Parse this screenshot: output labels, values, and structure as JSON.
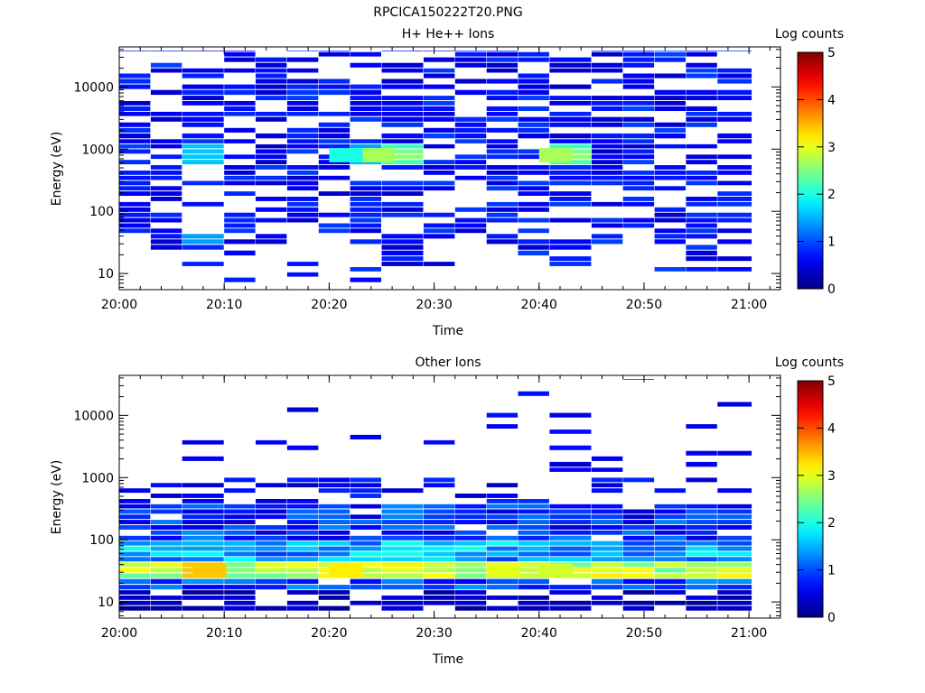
{
  "figure": {
    "filename": "RPCICA150222T20.PNG"
  },
  "colorbar": {
    "label": "Log counts",
    "ticks": [
      "0",
      "1",
      "2",
      "3",
      "4",
      "5"
    ],
    "range": [
      0,
      5
    ],
    "colormap": "jet"
  },
  "chart_data": [
    {
      "type": "heatmap",
      "title": "H+ He++ Ions",
      "xlabel": "Time",
      "ylabel": "Energy (eV)",
      "x_range": [
        "20:00",
        "21:03"
      ],
      "x_ticks": [
        "20:00",
        "20:10",
        "20:20",
        "20:30",
        "20:40",
        "20:50",
        "21:00"
      ],
      "y_scale": "log",
      "y_range": [
        5.5,
        44000
      ],
      "y_ticks": [
        "10",
        "100",
        "1000",
        "10000"
      ],
      "colorbar_label": "Log counts",
      "time_bins": [
        "20:00",
        "20:03",
        "20:06",
        "20:10",
        "20:13",
        "20:16",
        "20:19",
        "20:22",
        "20:25",
        "20:29",
        "20:32",
        "20:35",
        "20:38",
        "20:41",
        "20:45",
        "20:48",
        "20:51",
        "20:54",
        "20:57"
      ],
      "energy_bins_ev": [
        40000,
        33000,
        27000,
        22000,
        18000,
        15000,
        12000,
        10000,
        8000,
        6500,
        5400,
        4400,
        3600,
        3000,
        2400,
        2000,
        1600,
        1300,
        1100,
        900,
        740,
        610,
        500,
        410,
        340,
        280,
        230,
        190,
        155,
        128,
        105,
        86,
        71,
        58,
        48,
        39,
        32,
        26,
        21,
        17,
        14,
        11.5,
        9.5,
        7.8
      ],
      "notable_features": [
        {
          "time": "20:23",
          "energy_ev": 800,
          "log_counts": 2.7
        },
        {
          "time": "20:40",
          "energy_ev": 800,
          "log_counts": 2.7
        },
        {
          "time": "20:20",
          "energy_ev": 800,
          "log_counts": 2.0
        }
      ]
    },
    {
      "type": "heatmap",
      "title": "Other Ions",
      "xlabel": "Time",
      "ylabel": "Energy (eV)",
      "x_range": [
        "20:00",
        "21:03"
      ],
      "x_ticks": [
        "20:00",
        "20:10",
        "20:20",
        "20:30",
        "20:40",
        "20:50",
        "21:00"
      ],
      "y_scale": "log",
      "y_range": [
        5.5,
        44000
      ],
      "y_ticks": [
        "10",
        "100",
        "1000",
        "10000"
      ],
      "colorbar_label": "Log counts",
      "time_bins": [
        "20:00",
        "20:03",
        "20:06",
        "20:10",
        "20:13",
        "20:16",
        "20:19",
        "20:22",
        "20:25",
        "20:29",
        "20:32",
        "20:35",
        "20:38",
        "20:41",
        "20:45",
        "20:48",
        "20:51",
        "20:54",
        "20:57"
      ],
      "energy_bins_ev": [
        40000,
        33000,
        27000,
        22000,
        18000,
        15000,
        12000,
        10000,
        8000,
        6500,
        5400,
        4400,
        3600,
        3000,
        2400,
        2000,
        1600,
        1300,
        1100,
        900,
        740,
        610,
        500,
        410,
        340,
        280,
        230,
        190,
        155,
        128,
        105,
        86,
        71,
        58,
        48,
        39,
        32,
        26,
        21,
        17,
        14,
        11.5,
        9.5,
        7.8
      ],
      "notable_features": [
        {
          "time": "20:07",
          "energy_ev": 32,
          "log_counts": 3.4
        },
        {
          "time": "20:20",
          "energy_ev": 32,
          "log_counts": 3.2
        },
        {
          "time": "20:35",
          "energy_ev": 32,
          "log_counts": 3.0
        },
        {
          "time": "20:40",
          "energy_ev": 32,
          "log_counts": 2.9
        }
      ]
    }
  ]
}
